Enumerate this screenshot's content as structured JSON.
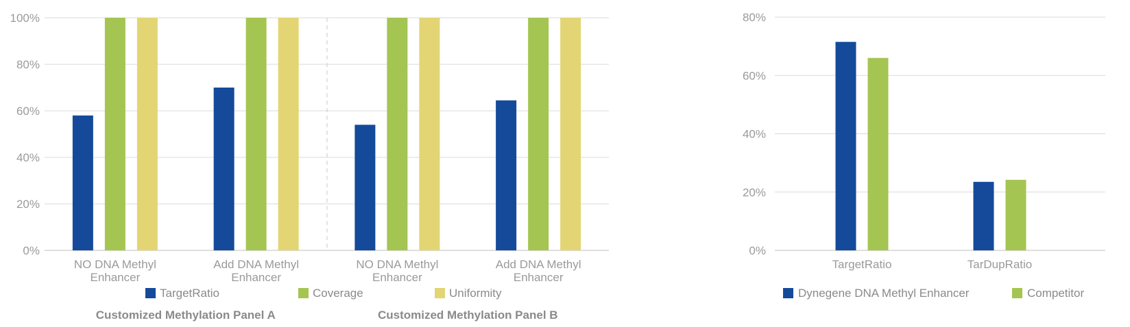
{
  "colors": {
    "blue": "#154a9a",
    "green": "#a4c552",
    "yellow": "#e3d574",
    "grid": "#d9d9d9",
    "axis": "#bfbfbf",
    "separator": "#c8c8c8"
  },
  "chart_data": [
    {
      "type": "bar",
      "ylim": [
        0,
        100
      ],
      "ytick_labels": [
        "0%",
        "20%",
        "40%",
        "60%",
        "80%",
        "100%"
      ],
      "yticks": [
        0,
        20,
        40,
        60,
        80,
        100
      ],
      "grid": true,
      "legend_position": "bottom",
      "groups": [
        {
          "label_line1": "NO DNA Methyl",
          "label_line2": "Enhancer",
          "panel": 0
        },
        {
          "label_line1": "Add DNA Methyl",
          "label_line2": "Enhancer",
          "panel": 0
        },
        {
          "label_line1": "NO DNA Methyl",
          "label_line2": "Enhancer",
          "panel": 1
        },
        {
          "label_line1": "Add DNA Methyl",
          "label_line2": "Enhancer",
          "panel": 1
        }
      ],
      "panels": [
        "Customized Methylation Panel A",
        "Customized Methylation Panel B"
      ],
      "series": [
        {
          "name": "TargetRatio",
          "color": "#154a9a",
          "values": [
            58,
            70,
            54,
            64.5
          ]
        },
        {
          "name": "Coverage",
          "color": "#a4c552",
          "values": [
            100,
            100,
            100,
            100
          ]
        },
        {
          "name": "Uniformity",
          "color": "#e3d574",
          "values": [
            100,
            100,
            100,
            100
          ]
        }
      ]
    },
    {
      "type": "bar",
      "ylim": [
        0,
        80
      ],
      "ytick_labels": [
        "0%",
        "20%",
        "40%",
        "60%",
        "80%"
      ],
      "yticks": [
        0,
        20,
        40,
        60,
        80
      ],
      "grid": true,
      "legend_position": "bottom",
      "categories": [
        "TargetRatio",
        "TarDupRatio"
      ],
      "series": [
        {
          "name": "Dynegene DNA Methyl Enhancer",
          "color": "#154a9a",
          "values": [
            71.5,
            23.5
          ]
        },
        {
          "name": "Competitor",
          "color": "#a4c552",
          "values": [
            66,
            24.2
          ]
        }
      ]
    }
  ]
}
